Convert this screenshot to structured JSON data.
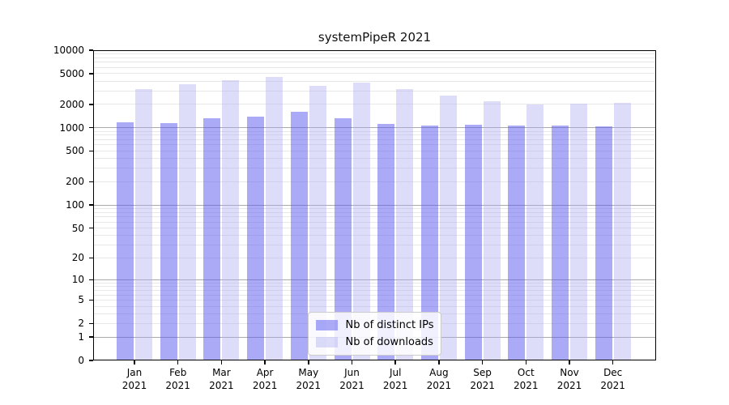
{
  "title": "systemPipeR 2021",
  "chart_data": {
    "type": "bar",
    "categories": [
      "Jan 2021",
      "Feb 2021",
      "Mar 2021",
      "Apr 2021",
      "May 2021",
      "Jun 2021",
      "Jul 2021",
      "Aug 2021",
      "Sep 2021",
      "Oct 2021",
      "Nov 2021",
      "Dec 2021"
    ],
    "series": [
      {
        "name": "Nb of distinct IPs",
        "color": "rgba(85,85,240,0.5)",
        "values": [
          1180,
          1150,
          1330,
          1390,
          1620,
          1320,
          1120,
          1070,
          1090,
          1070,
          1070,
          1040
        ]
      },
      {
        "name": "Nb of downloads",
        "color": "rgba(170,170,240,0.4)",
        "values": [
          3150,
          3640,
          4150,
          4550,
          3500,
          3850,
          3150,
          2600,
          2200,
          2000,
          2050,
          2100
        ]
      }
    ],
    "yscale": "log1p",
    "ylim": [
      0,
      10000
    ],
    "yticks": [
      10000,
      5000,
      2000,
      1000,
      500,
      200,
      100,
      50,
      20,
      10,
      5,
      2,
      1,
      0
    ],
    "grid": {
      "on": true,
      "major_color": "#aaaaaa",
      "minor_color": "#e8e8e8"
    },
    "legend_position": "lower center",
    "axis_color": "#000000"
  }
}
